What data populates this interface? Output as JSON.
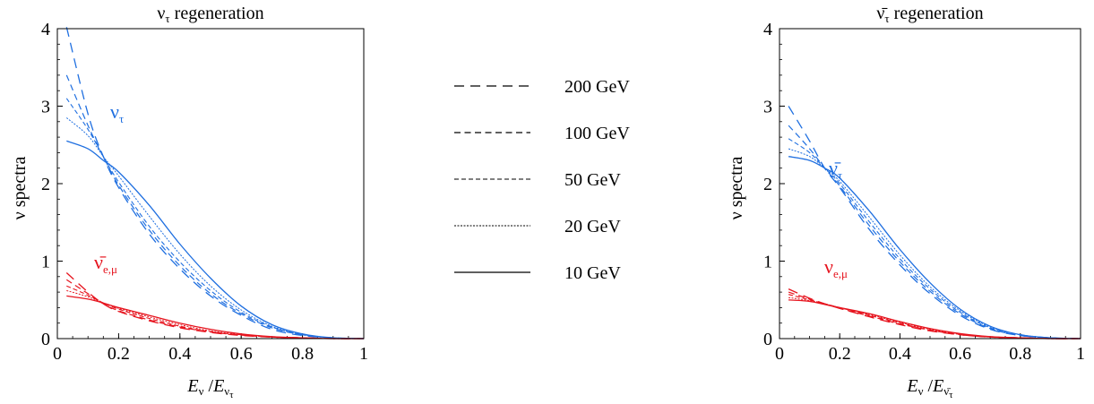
{
  "legend": {
    "entries": [
      {
        "label": "200 GeV",
        "dash": "11,7",
        "width": 1.3
      },
      {
        "label": "100 GeV",
        "dash": "7,4.5",
        "width": 1.2
      },
      {
        "label": "50 GeV",
        "dash": "5,3",
        "width": 1.1
      },
      {
        "label": "20 GeV",
        "dash": "2,1.5",
        "width": 1.0
      },
      {
        "label": "10 GeV",
        "dash": "",
        "width": 1.3
      }
    ]
  },
  "chart_data": [
    {
      "type": "line",
      "title": "ντ regeneration",
      "xlabel": "Eν/Eντ",
      "ylabel": "ν spectra",
      "xlim": [
        0,
        1
      ],
      "ylim": [
        0,
        4
      ],
      "xticks": [
        "0",
        "0.2",
        "0.4",
        "0.6",
        "0.8",
        "1"
      ],
      "yticks": [
        "0",
        "1",
        "2",
        "3",
        "4"
      ],
      "grid": false,
      "colors": {
        "nutau": "#1f6fe0",
        "nue": "#e6141e"
      },
      "curve_labels": {
        "nutau": "ντ",
        "nue": "ν̄e,μ"
      },
      "x": [
        0.03,
        0.1,
        0.15,
        0.2,
        0.3,
        0.4,
        0.5,
        0.6,
        0.7,
        0.8,
        0.9,
        1.0
      ],
      "series": [
        {
          "group": "nutau",
          "energy": "200 GeV",
          "values": [
            4.05,
            2.9,
            2.35,
            1.95,
            1.35,
            0.9,
            0.55,
            0.3,
            0.12,
            0.04,
            0.01,
            0.0
          ]
        },
        {
          "group": "nutau",
          "energy": "100 GeV",
          "values": [
            3.4,
            2.75,
            2.35,
            1.98,
            1.4,
            0.94,
            0.58,
            0.32,
            0.14,
            0.05,
            0.01,
            0.0
          ]
        },
        {
          "group": "nutau",
          "energy": "50 GeV",
          "values": [
            3.1,
            2.7,
            2.35,
            2.02,
            1.45,
            0.99,
            0.62,
            0.34,
            0.15,
            0.05,
            0.01,
            0.0
          ]
        },
        {
          "group": "nutau",
          "energy": "20 GeV",
          "values": [
            2.85,
            2.62,
            2.35,
            2.1,
            1.58,
            1.09,
            0.68,
            0.37,
            0.16,
            0.05,
            0.01,
            0.0
          ]
        },
        {
          "group": "nutau",
          "energy": "10 GeV",
          "values": [
            2.55,
            2.45,
            2.3,
            2.15,
            1.72,
            1.22,
            0.78,
            0.42,
            0.18,
            0.06,
            0.01,
            0.0
          ]
        },
        {
          "group": "nue",
          "energy": "200 GeV",
          "values": [
            0.85,
            0.6,
            0.45,
            0.35,
            0.23,
            0.14,
            0.08,
            0.04,
            0.02,
            0.01,
            0.0,
            0.0
          ]
        },
        {
          "group": "nue",
          "energy": "100 GeV",
          "values": [
            0.76,
            0.58,
            0.45,
            0.36,
            0.24,
            0.15,
            0.085,
            0.045,
            0.02,
            0.01,
            0.0,
            0.0
          ]
        },
        {
          "group": "nue",
          "energy": "50 GeV",
          "values": [
            0.68,
            0.56,
            0.46,
            0.38,
            0.26,
            0.16,
            0.09,
            0.05,
            0.02,
            0.01,
            0.0,
            0.0
          ]
        },
        {
          "group": "nue",
          "energy": "20 GeV",
          "values": [
            0.62,
            0.54,
            0.46,
            0.39,
            0.28,
            0.18,
            0.1,
            0.05,
            0.02,
            0.01,
            0.0,
            0.0
          ]
        },
        {
          "group": "nue",
          "energy": "10 GeV",
          "values": [
            0.55,
            0.51,
            0.46,
            0.4,
            0.3,
            0.2,
            0.12,
            0.06,
            0.025,
            0.01,
            0.0,
            0.0
          ]
        }
      ]
    },
    {
      "type": "line",
      "title": "ν̄τ regeneration",
      "xlabel": "Eν/Eν̄τ",
      "ylabel": "ν spectra",
      "xlim": [
        0,
        1
      ],
      "ylim": [
        0,
        4
      ],
      "xticks": [
        "0",
        "0.2",
        "0.4",
        "0.6",
        "0.8",
        "1"
      ],
      "yticks": [
        "0",
        "1",
        "2",
        "3",
        "4"
      ],
      "grid": false,
      "colors": {
        "nutau": "#1f6fe0",
        "nue": "#e6141e"
      },
      "curve_labels": {
        "nutau": "ν̄τ",
        "nue": "νe,μ"
      },
      "x": [
        0.03,
        0.1,
        0.15,
        0.2,
        0.3,
        0.4,
        0.5,
        0.6,
        0.7,
        0.8,
        0.9,
        1.0
      ],
      "series": [
        {
          "group": "nutau",
          "energy": "200 GeV",
          "values": [
            3.0,
            2.55,
            2.2,
            1.95,
            1.4,
            0.95,
            0.58,
            0.3,
            0.12,
            0.04,
            0.01,
            0.0
          ]
        },
        {
          "group": "nutau",
          "energy": "100 GeV",
          "values": [
            2.75,
            2.45,
            2.2,
            1.97,
            1.45,
            0.99,
            0.61,
            0.32,
            0.13,
            0.04,
            0.01,
            0.0
          ]
        },
        {
          "group": "nutau",
          "energy": "50 GeV",
          "values": [
            2.58,
            2.4,
            2.2,
            2.0,
            1.5,
            1.03,
            0.64,
            0.34,
            0.14,
            0.05,
            0.01,
            0.0
          ]
        },
        {
          "group": "nutau",
          "energy": "20 GeV",
          "values": [
            2.45,
            2.35,
            2.2,
            2.03,
            1.56,
            1.08,
            0.67,
            0.36,
            0.15,
            0.05,
            0.01,
            0.0
          ]
        },
        {
          "group": "nutau",
          "energy": "10 GeV",
          "values": [
            2.35,
            2.3,
            2.2,
            2.07,
            1.64,
            1.15,
            0.72,
            0.38,
            0.16,
            0.05,
            0.01,
            0.0
          ]
        },
        {
          "group": "nue",
          "energy": "200 GeV",
          "values": [
            0.64,
            0.52,
            0.45,
            0.39,
            0.28,
            0.18,
            0.1,
            0.05,
            0.02,
            0.01,
            0.0,
            0.0
          ]
        },
        {
          "group": "nue",
          "energy": "100 GeV",
          "values": [
            0.6,
            0.51,
            0.45,
            0.39,
            0.29,
            0.19,
            0.11,
            0.05,
            0.02,
            0.01,
            0.0,
            0.0
          ]
        },
        {
          "group": "nue",
          "energy": "50 GeV",
          "values": [
            0.57,
            0.5,
            0.45,
            0.4,
            0.3,
            0.2,
            0.11,
            0.055,
            0.02,
            0.01,
            0.0,
            0.0
          ]
        },
        {
          "group": "nue",
          "energy": "20 GeV",
          "values": [
            0.53,
            0.49,
            0.45,
            0.4,
            0.31,
            0.21,
            0.12,
            0.06,
            0.025,
            0.01,
            0.0,
            0.0
          ]
        },
        {
          "group": "nue",
          "energy": "10 GeV",
          "values": [
            0.5,
            0.48,
            0.44,
            0.4,
            0.32,
            0.22,
            0.13,
            0.065,
            0.025,
            0.01,
            0.0,
            0.0
          ]
        }
      ]
    }
  ]
}
